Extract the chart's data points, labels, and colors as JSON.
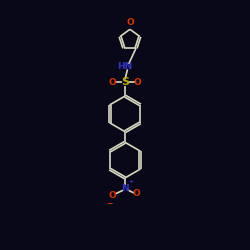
{
  "background": "#080818",
  "bond_color": "#d8d8c0",
  "atom_colors": {
    "O": "#dd3300",
    "N": "#3333cc",
    "S": "#bbaa00",
    "C": "#d8d8c0"
  },
  "font_size": 6.5,
  "line_width": 1.2
}
